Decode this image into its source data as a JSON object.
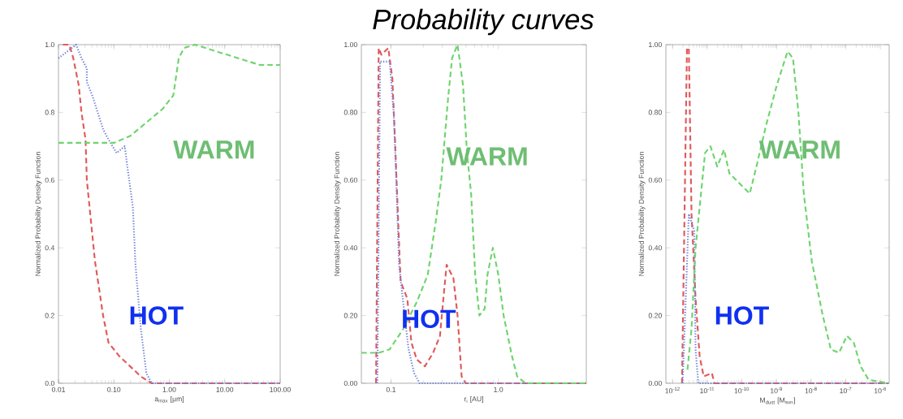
{
  "chart_data": [
    {
      "type": "line",
      "xlabel": "a$_{max}$ [μm]",
      "ylabel": "Normalized Probability Density Function",
      "log": "x",
      "xlim": [
        0.01,
        100
      ],
      "ylim": [
        0,
        1.0
      ],
      "xticks": [
        {
          "value": 0.01,
          "label": "0.01"
        },
        {
          "value": 0.1,
          "label": "0.10"
        },
        {
          "value": 1,
          "label": "1.00"
        },
        {
          "value": 10,
          "label": "10.00"
        },
        {
          "value": 100,
          "label": "100.00"
        }
      ],
      "yticks": [
        {
          "value": 0,
          "label": "0.0"
        },
        0.2,
        0.4,
        0.6,
        0.8,
        {
          "value": 1,
          "label": "1.0"
        }
      ],
      "annotations": [
        "WARM",
        "HOT"
      ],
      "series": [
        {
          "color": "#e05a5a",
          "line_style": "dashed",
          "x": [
            0.012,
            0.0157,
            0.0185,
            0.0232,
            0.026,
            0.0308,
            0.0325,
            0.0385,
            0.0456,
            0.054,
            0.0638,
            0.08,
            0.125,
            0.196,
            0.307,
            0.48,
            100
          ],
          "values": [
            1.0,
            1.0,
            0.96,
            0.88,
            0.8,
            0.72,
            0.6,
            0.48,
            0.36,
            0.28,
            0.2,
            0.12,
            0.08,
            0.05,
            0.02,
            0,
            0
          ]
        },
        {
          "color": "#7080d8",
          "line_style": "dotted",
          "x": [
            0.01,
            0.0208,
            0.026,
            0.0325,
            0.0325,
            0.0407,
            0.051,
            0.0638,
            0.0798,
            0.112,
            0.157,
            0.175,
            0.22,
            0.245,
            0.307,
            0.385,
            0.48,
            100
          ],
          "values": [
            0.96,
            1.0,
            0.96,
            0.93,
            0.89,
            0.85,
            0.8,
            0.75,
            0.72,
            0.68,
            0.7,
            0.64,
            0.52,
            0.35,
            0.16,
            0.03,
            0,
            0
          ]
        },
        {
          "color": "#6ed46e",
          "line_style": "dashed",
          "x": [
            0.01,
            0.1,
            0.196,
            0.385,
            0.755,
            1.18,
            1.48,
            1.85,
            2.9,
            7.1,
            17.5,
            43,
            100
          ],
          "values": [
            0.71,
            0.71,
            0.73,
            0.77,
            0.81,
            0.85,
            0.96,
            0.99,
            1.0,
            0.98,
            0.96,
            0.94,
            0.94
          ]
        }
      ]
    },
    {
      "type": "line",
      "title": "Probability curves",
      "xlabel": "r$_{i}$ [AU]",
      "ylabel": "Normalized Probability Density Function",
      "log": "x",
      "xlim": [
        0.053,
        6.6
      ],
      "ylim": [
        0,
        1.0
      ],
      "xticks": [
        {
          "value": 0.1,
          "label": "0.1"
        },
        {
          "value": 1,
          "label": "1.0"
        }
      ],
      "yticks": [
        {
          "value": 0,
          "label": "0.00"
        },
        {
          "value": 0.2,
          "label": "0.20"
        },
        {
          "value": 0.4,
          "label": "0.40"
        },
        {
          "value": 0.6,
          "label": "0.60"
        },
        {
          "value": 0.8,
          "label": "0.80"
        },
        {
          "value": 1,
          "label": "1.00"
        }
      ],
      "annotations": [
        "WARM",
        "HOT"
      ],
      "series": [
        {
          "color": "#e05a5a",
          "line_style": "dashed",
          "x": [
            0.0726,
            0.0769,
            0.0815,
            0.0944,
            0.103,
            0.109,
            0.116,
            0.123,
            0.142,
            0.155,
            0.174,
            0.207,
            0.247,
            0.286,
            0.312,
            0.33,
            0.382,
            0.417,
            0.455,
            0.497,
            6.6
          ],
          "values": [
            0,
            0.99,
            0.97,
            0.99,
            0.9,
            0.72,
            0.5,
            0.3,
            0.25,
            0.12,
            0.07,
            0.05,
            0.09,
            0.14,
            0.27,
            0.35,
            0.31,
            0.2,
            0.02,
            0,
            0
          ]
        },
        {
          "color": "#7080d8",
          "line_style": "dotted",
          "x": [
            0.0747,
            0.0792,
            0.0971,
            0.106,
            0.112,
            0.119,
            0.134,
            0.146,
            0.164,
            0.185,
            6.6
          ],
          "values": [
            0,
            0.95,
            0.95,
            0.8,
            0.6,
            0.35,
            0.2,
            0.1,
            0.03,
            0,
            0
          ]
        },
        {
          "color": "#6ed46e",
          "line_style": "dashed",
          "x": [
            0.053,
            0.0769,
            0.0971,
            0.13,
            0.174,
            0.22,
            0.262,
            0.294,
            0.34,
            0.371,
            0.417,
            0.469,
            0.511,
            0.558,
            0.609,
            0.666,
            0.747,
            0.792,
            0.889,
            1.0,
            1.12,
            1.34,
            1.5,
            1.79,
            6.6
          ],
          "values": [
            0.09,
            0.09,
            0.1,
            0.16,
            0.24,
            0.32,
            0.48,
            0.6,
            0.84,
            0.96,
            1.0,
            0.88,
            0.68,
            0.56,
            0.32,
            0.2,
            0.22,
            0.32,
            0.4,
            0.32,
            0.2,
            0.08,
            0.02,
            0,
            0
          ]
        }
      ]
    },
    {
      "type": "line",
      "xlabel": "M$_{dust}$ [M$_{sun}$]",
      "ylabel": "Normalized Probability Density Function",
      "log": "x",
      "xlim": [
        6.4e-13,
        1.8e-06
      ],
      "ylim": [
        0,
        1.0
      ],
      "xticks": [
        {
          "value": 1e-12,
          "label": "10$^{-12}$"
        },
        {
          "value": 1e-11,
          "label": "10$^{-11}$"
        },
        {
          "value": 1e-10,
          "label": "10$^{-10}$"
        },
        {
          "value": 1e-09,
          "label": "10$^{-9}$"
        },
        {
          "value": 1e-08,
          "label": "10$^{-8}$"
        },
        {
          "value": 1e-07,
          "label": "10$^{-7}$"
        },
        {
          "value": 1e-06,
          "label": "10$^{-6}$"
        }
      ],
      "yticks": [
        {
          "value": 0,
          "label": "0.00"
        },
        {
          "value": 0.2,
          "label": "0.20"
        },
        {
          "value": 0.4,
          "label": "0.40"
        },
        {
          "value": 0.6,
          "label": "0.60"
        },
        {
          "value": 0.8,
          "label": "0.80"
        },
        {
          "value": 1,
          "label": "1.00"
        }
      ],
      "annotations": [
        "WARM",
        "HOT"
      ],
      "series": [
        {
          "color": "#e05a5a",
          "line_style": "dashed",
          "x": [
            1.87e-12,
            2.6e-12,
            2.94e-12,
            3.52e-12,
            4.61e-12,
            6.04e-12,
            7.91e-12,
            1.36e-11,
            1.63e-11,
            1.8e-06
          ],
          "values": [
            0,
            0.99,
            0.99,
            0.5,
            0.25,
            0.08,
            0.02,
            0.03,
            0,
            0
          ]
        },
        {
          "color": "#7080d8",
          "line_style": "dotted",
          "x": [
            1.95e-12,
            2.94e-12,
            4.22e-12,
            4.61e-12,
            5.52e-12,
            1.8e-06
          ],
          "values": [
            0,
            0.5,
            0.45,
            0.1,
            0,
            0
          ]
        },
        {
          "color": "#6ed46e",
          "line_style": "dashed",
          "x": [
            2.69e-12,
            3.52e-12,
            4.61e-12,
            6.61e-12,
            8.66e-12,
            1.24e-11,
            1.95e-11,
            3.05e-11,
            4.37e-11,
            6.86e-11,
            1.69e-10,
            2.64e-10,
            4.96e-10,
            1.02e-09,
            2.09e-09,
            3e-09,
            4.3e-09,
            6.15e-09,
            1.05e-08,
            2.17e-08,
            3.72e-08,
            6.38e-08,
            1.09e-07,
            1.71e-07,
            2.69e-07,
            4.61e-07,
            1.8e-06
          ],
          "values": [
            0.04,
            0.16,
            0.4,
            0.56,
            0.68,
            0.7,
            0.64,
            0.69,
            0.62,
            0.6,
            0.56,
            0.64,
            0.76,
            0.88,
            0.98,
            0.96,
            0.8,
            0.56,
            0.36,
            0.2,
            0.1,
            0.09,
            0.14,
            0.12,
            0.05,
            0.01,
            0.0
          ]
        }
      ]
    }
  ]
}
